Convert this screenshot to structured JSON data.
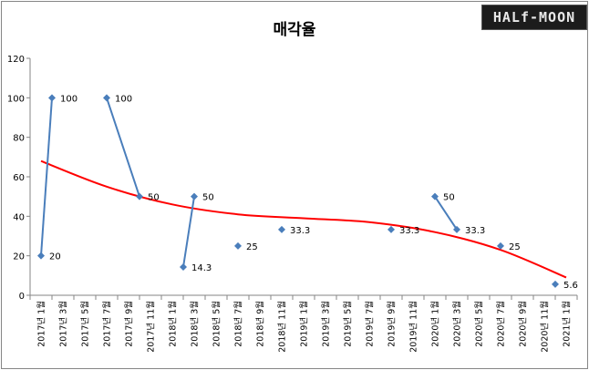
{
  "chart_data": {
    "type": "line",
    "title": "매각율",
    "x_labels": [
      "2017년 1월",
      "2017년 3월",
      "2017년 5월",
      "2017년 7월",
      "2017년 9월",
      "2017년 11월",
      "2018년 1월",
      "2018년 3월",
      "2018년 5월",
      "2018년 7월",
      "2018년 9월",
      "2018년 11월",
      "2019년 1월",
      "2019년 3월",
      "2019년 5월",
      "2019년 7월",
      "2019년 9월",
      "2019년 11월",
      "2020년 1월",
      "2020년 3월",
      "2020년 5월",
      "2020년 7월",
      "2020년 9월",
      "2020년 11월",
      "2021년 1월"
    ],
    "ylim": [
      0,
      120
    ],
    "yticks": [
      0,
      20,
      40,
      60,
      80,
      100,
      120
    ],
    "grid": false,
    "points": [
      {
        "x": "2017년 1월",
        "y": 20,
        "label": "20"
      },
      {
        "x": "2017년 2월",
        "y": 100,
        "label": "100"
      },
      {
        "x": "2017년 7월",
        "y": 100,
        "label": "100"
      },
      {
        "x": "2017년 10월",
        "y": 50,
        "label": "50"
      },
      {
        "x": "2018년 2월",
        "y": 14.3,
        "label": "14.3"
      },
      {
        "x": "2018년 3월",
        "y": 50,
        "label": "50"
      },
      {
        "x": "2018년 7월",
        "y": 25,
        "label": "25"
      },
      {
        "x": "2018년 11월",
        "y": 33.3,
        "label": "33.3"
      },
      {
        "x": "2019년 9월",
        "y": 33.3,
        "label": "33.3"
      },
      {
        "x": "2020년 1월",
        "y": 50,
        "label": "50"
      },
      {
        "x": "2020년 3월",
        "y": 33.3,
        "label": "33.3"
      },
      {
        "x": "2020년 7월",
        "y": 25,
        "label": "25"
      },
      {
        "x": "2020년 12월",
        "y": 5.6,
        "label": "5.6"
      }
    ],
    "segments": [
      [
        0,
        1
      ],
      [
        2,
        3
      ],
      [
        4,
        5
      ],
      [
        9,
        10
      ]
    ],
    "trendline": {
      "type": "polynomial",
      "values": [
        {
          "x": "2017년 1월",
          "y": 68
        },
        {
          "x": "2017년 7월",
          "y": 55
        },
        {
          "x": "2018년 1월",
          "y": 46
        },
        {
          "x": "2018년 7월",
          "y": 41
        },
        {
          "x": "2019년 1월",
          "y": 39
        },
        {
          "x": "2019년 7월",
          "y": 37
        },
        {
          "x": "2020년 1월",
          "y": 32
        },
        {
          "x": "2020년 7월",
          "y": 23
        },
        {
          "x": "2021년 1월",
          "y": 9
        }
      ]
    },
    "colors": {
      "series": "#4a7ebb",
      "trend": "#ff0000",
      "axis": "#868686"
    }
  },
  "watermark": {
    "text": "HALf-MOON"
  }
}
